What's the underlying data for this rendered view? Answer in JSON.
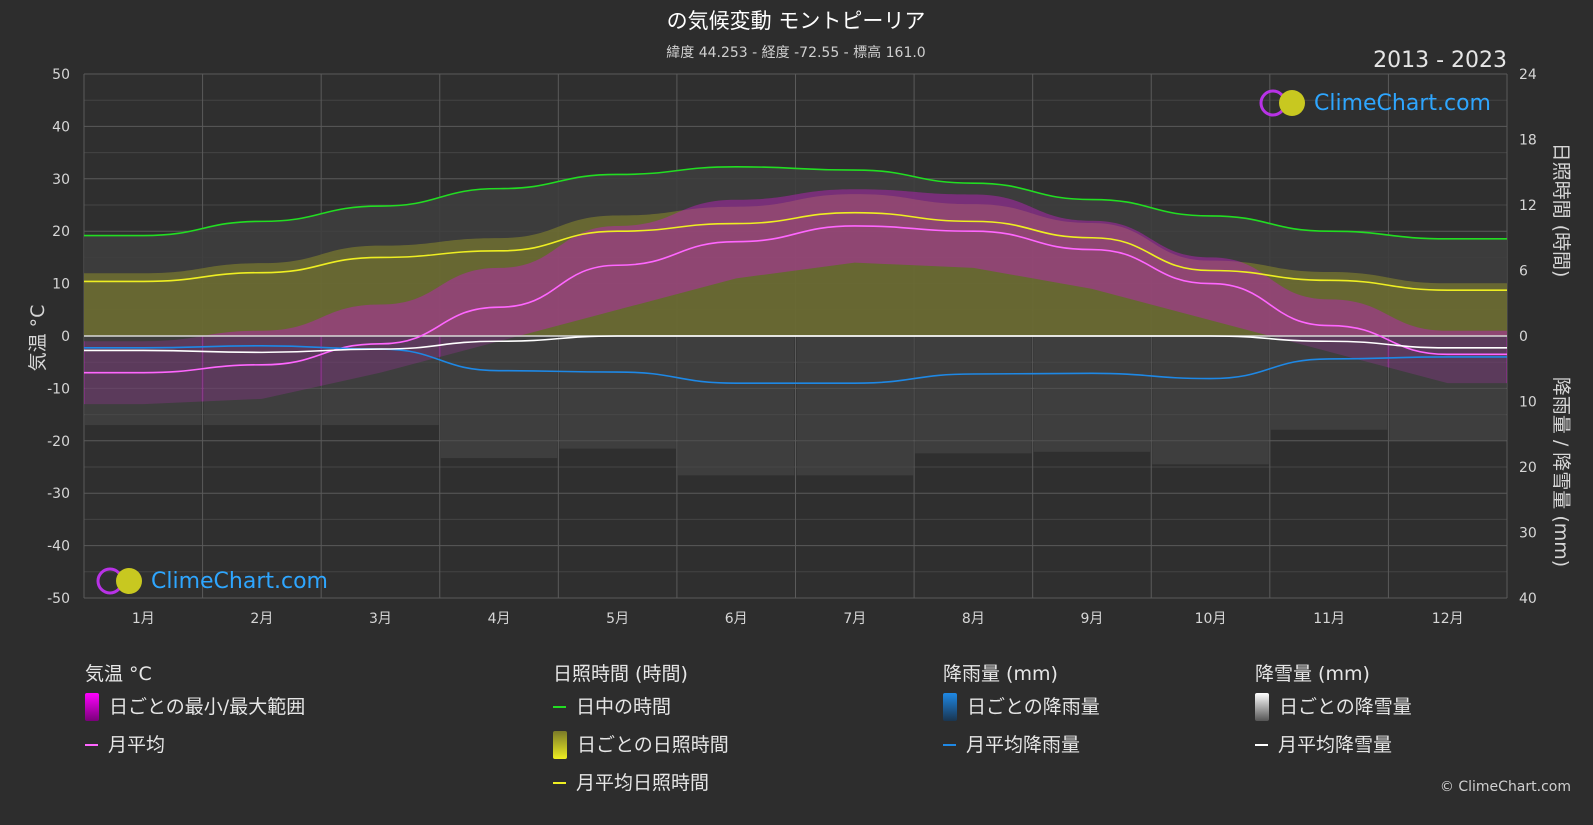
{
  "header": {
    "title": "の気候変動 モントピーリア",
    "subtitle": "緯度 44.253 - 経度 -72.55 - 標高 161.0",
    "years": "2013 - 2023"
  },
  "axes": {
    "left_title": "気温 °C",
    "right_top_title": "日照時間 (時間)",
    "right_bottom_title": "降雨量 / 降雪量 (mm)",
    "left_ticks": [
      "50",
      "40",
      "30",
      "20",
      "10",
      "0",
      "-10",
      "-20",
      "-30",
      "-40",
      "-50"
    ],
    "right_top_ticks": [
      "24",
      "18",
      "12",
      "6",
      "0"
    ],
    "right_bottom_ticks": [
      "10",
      "20",
      "30",
      "40"
    ]
  },
  "logo": {
    "text": "ClimeChart.com"
  },
  "copyright": "© ClimeChart.com",
  "legend": {
    "temp": {
      "header": "気温 °C",
      "range_label": "日ごとの最小/最大範囲",
      "avg_label": "月平均",
      "range_color": "#d000d0",
      "avg_color": "#ff66ff"
    },
    "sun": {
      "header": "日照時間 (時間)",
      "daylight_label": "日中の時間",
      "daily_label": "日ごとの日照時間",
      "avg_label": "月平均日照時間",
      "daylight_color": "#22dd22",
      "daily_color": "#c8c830",
      "avg_color": "#eeee22"
    },
    "rain": {
      "header": "降雨量 (mm)",
      "daily_label": "日ごとの降雨量",
      "avg_label": "月平均降雨量",
      "color": "#1e88e5"
    },
    "snow": {
      "header": "降雪量 (mm)",
      "daily_label": "日ごとの降雪量",
      "avg_label": "月平均降雪量",
      "color": "#ffffff"
    }
  },
  "chart_data": {
    "type": "line",
    "categories": [
      "1月",
      "2月",
      "3月",
      "4月",
      "5月",
      "6月",
      "7月",
      "8月",
      "9月",
      "10月",
      "11月",
      "12月"
    ],
    "temp_ylim": [
      -50,
      50
    ],
    "sun_ylim": [
      0,
      24
    ],
    "precip_ylim": [
      0,
      40
    ],
    "grid": true,
    "series": [
      {
        "name": "日中の時間",
        "axis": "sun",
        "color": "#22dd22",
        "values": [
          9.2,
          10.5,
          11.9,
          13.5,
          14.8,
          15.5,
          15.2,
          14.0,
          12.5,
          11.0,
          9.6,
          8.9
        ]
      },
      {
        "name": "月平均日照時間",
        "axis": "sun",
        "color": "#eeee22",
        "values": [
          5.0,
          5.8,
          7.2,
          7.8,
          9.6,
          10.3,
          11.3,
          10.5,
          9.0,
          6.0,
          5.1,
          4.2
        ]
      },
      {
        "name": "月平均",
        "axis": "temp",
        "color": "#ff66ff",
        "values": [
          -7.0,
          -5.5,
          -1.5,
          5.5,
          13.5,
          18.0,
          21.0,
          20.0,
          16.5,
          10.0,
          2.0,
          -3.5
        ]
      },
      {
        "name": "月平均降雨量",
        "axis": "precip",
        "color": "#1e88e5",
        "values": [
          1.8,
          1.5,
          2.0,
          5.3,
          5.5,
          7.2,
          7.2,
          5.8,
          5.7,
          6.5,
          3.5,
          3.2
        ]
      },
      {
        "name": "月平均降雪量",
        "axis": "precip",
        "color": "#ffffff",
        "values": [
          2.2,
          2.5,
          2.0,
          0.8,
          0.0,
          0.0,
          0.0,
          0.0,
          0.0,
          0.0,
          0.8,
          1.8
        ]
      }
    ],
    "range_max": [
      -1,
      1,
      6,
      13,
      21,
      26,
      28,
      27,
      22,
      15,
      7,
      1
    ],
    "range_min": [
      -13,
      -12,
      -7,
      -1,
      5,
      11,
      14,
      13,
      9,
      3,
      -3,
      -9
    ]
  }
}
